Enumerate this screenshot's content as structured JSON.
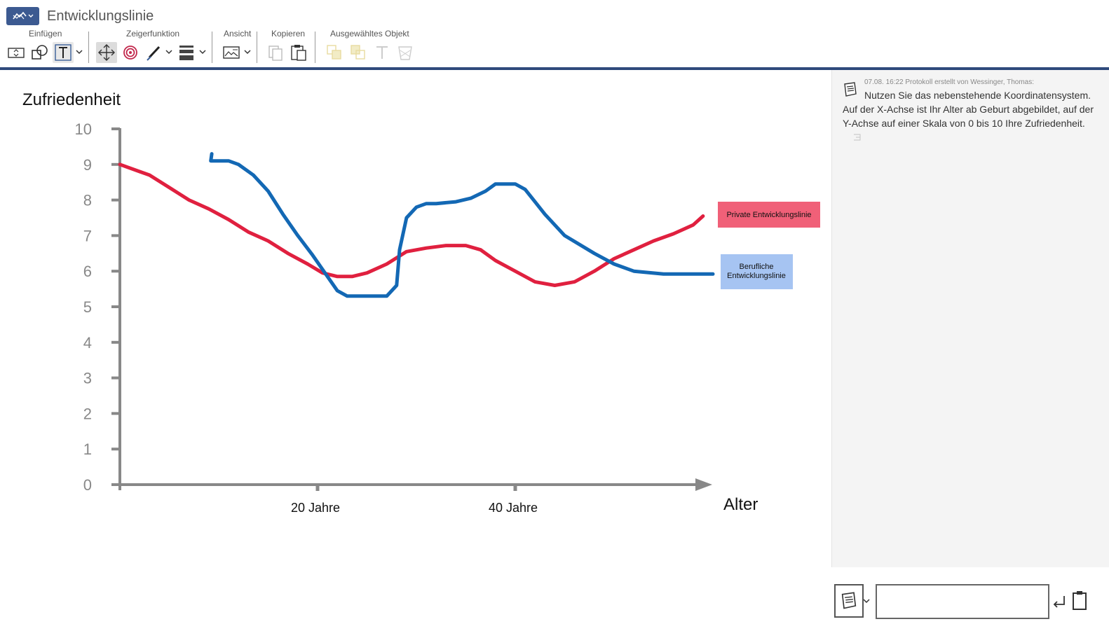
{
  "app": {
    "title": "Entwicklungslinie"
  },
  "toolbar": {
    "groups": {
      "einfuegen": "Einfügen",
      "zeigerfunktion": "Zeigerfunktion",
      "ansicht": "Ansicht",
      "kopieren": "Kopieren",
      "ausgewaehltes_objekt": "Ausgewähltes Objekt"
    }
  },
  "chart": {
    "title": "Zufriedenheit",
    "xlabel": "Alter",
    "y_ticks": [
      "0",
      "1",
      "2",
      "3",
      "4",
      "5",
      "6",
      "7",
      "8",
      "9",
      "10"
    ],
    "x_ticks": [
      "20 Jahre",
      "40 Jahre"
    ],
    "legend_private": "Private Entwicklungslinie",
    "legend_beruflich_1": "Berufliche",
    "legend_beruflich_2": "Entwicklungslinie"
  },
  "chart_data": {
    "type": "line",
    "title": "Zufriedenheit",
    "xlabel": "Alter",
    "ylabel": "",
    "ylim": [
      0,
      10
    ],
    "xlim": [
      0,
      60
    ],
    "x_ticks": [
      20,
      40
    ],
    "x_tick_labels": [
      "20 Jahre",
      "40 Jahre"
    ],
    "legend": "right",
    "series": [
      {
        "name": "Private Entwicklungslinie",
        "color": "#e0203f",
        "x": [
          0,
          2,
          3,
          5,
          7,
          9,
          11,
          13,
          15,
          17,
          19,
          20.5,
          22,
          23.5,
          25,
          27,
          29,
          31,
          33,
          35,
          36.5,
          38,
          40,
          42,
          44,
          46,
          48,
          50,
          52,
          54,
          56,
          58,
          59
        ],
        "y": [
          9.0,
          8.8,
          8.7,
          8.35,
          8.0,
          7.75,
          7.45,
          7.1,
          6.85,
          6.5,
          6.2,
          5.95,
          5.85,
          5.85,
          5.95,
          6.2,
          6.55,
          6.65,
          6.72,
          6.72,
          6.6,
          6.3,
          6.0,
          5.7,
          5.6,
          5.7,
          6.0,
          6.35,
          6.6,
          6.85,
          7.05,
          7.3,
          7.55
        ]
      },
      {
        "name": "Berufliche Entwicklungslinie",
        "color": "#1368b4",
        "x": [
          9.3,
          9.2,
          9.5,
          11,
          12,
          13.5,
          15,
          16.5,
          18,
          19.5,
          21,
          22,
          23,
          24,
          25.5,
          27,
          28,
          28.3,
          29,
          30,
          31,
          32,
          34,
          35.5,
          37,
          38,
          40,
          41,
          43,
          45,
          48,
          50,
          52,
          55,
          57,
          60
        ],
        "y": [
          9.3,
          9.1,
          9.1,
          9.1,
          9.0,
          8.7,
          8.25,
          7.6,
          7.0,
          6.45,
          5.85,
          5.45,
          5.3,
          5.3,
          5.3,
          5.3,
          5.6,
          6.6,
          7.5,
          7.8,
          7.9,
          7.9,
          7.95,
          8.05,
          8.25,
          8.45,
          8.45,
          8.3,
          7.6,
          7.0,
          6.5,
          6.2,
          6.0,
          5.92,
          5.92,
          5.92
        ]
      }
    ]
  },
  "protocol": {
    "meta": "07.08. 16:22 Protokoll erstellt von Wessinger, Thomas:",
    "text_first": "Nutzen Sie das nebenstehende Koordinatensystem.",
    "text_rest": "Auf der X-Achse ist Ihr Alter ab Geburt abgebildet, auf der Y-Achse auf einer Skala von 0 bis 10 Ihre Zufriedenheit."
  },
  "input": {
    "value": ""
  }
}
